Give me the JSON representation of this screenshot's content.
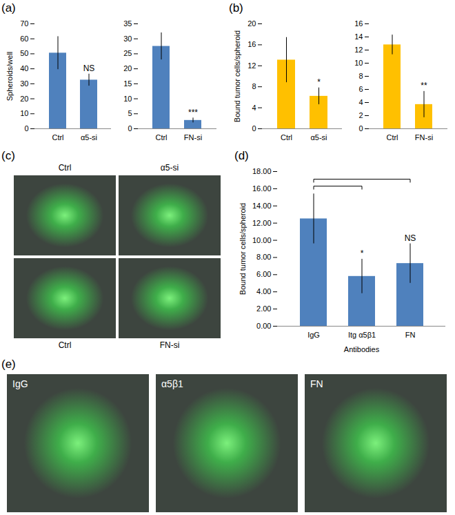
{
  "chart_data": [
    {
      "type": "bar",
      "title": "(a)",
      "ylabel": "Spheroids/well",
      "categories": [
        "Ctrl",
        "α5-si"
      ],
      "values": [
        50.5,
        32.5
      ],
      "errors": [
        11,
        4
      ],
      "annotations": [
        null,
        "NS"
      ],
      "color": "#4f81bd",
      "ylim": [
        0,
        70
      ],
      "yticks": [
        0,
        10,
        20,
        30,
        40,
        50,
        60,
        70
      ]
    },
    {
      "type": "bar",
      "categories": [
        "Ctrl",
        "FN-si"
      ],
      "values": [
        27.5,
        2.8
      ],
      "errors": [
        4.5,
        0.8
      ],
      "annotations": [
        null,
        "***"
      ],
      "color": "#4f81bd",
      "ylim": [
        0,
        35
      ],
      "yticks": [
        0,
        5,
        10,
        15,
        20,
        25,
        30,
        35
      ]
    },
    {
      "type": "bar",
      "title": "(b)",
      "ylabel": "Bound tumor cells/spheroid",
      "categories": [
        "Ctrl",
        "α5-si"
      ],
      "values": [
        13.1,
        6.2
      ],
      "errors": [
        4.3,
        1.6
      ],
      "annotations": [
        null,
        "*"
      ],
      "color": "#ffc000",
      "ylim": [
        0,
        20
      ],
      "yticks": [
        0,
        4,
        8,
        12,
        16,
        20
      ]
    },
    {
      "type": "bar",
      "categories": [
        "Ctrl",
        "FN-si"
      ],
      "values": [
        12.8,
        3.7
      ],
      "errors": [
        1.5,
        2.0
      ],
      "annotations": [
        null,
        "**"
      ],
      "color": "#ffc000",
      "ylim": [
        0,
        16
      ],
      "yticks": [
        0,
        2,
        4,
        6,
        8,
        10,
        12,
        14,
        16
      ]
    },
    {
      "type": "bar",
      "title": "(d)",
      "ylabel": "Bound tumor cells/spheroid",
      "xlabel": "Antibodies",
      "categories": [
        "IgG",
        "Itg α5β1",
        "FN"
      ],
      "values": [
        12.5,
        5.8,
        7.3
      ],
      "errors": [
        2.9,
        2.0,
        2.3
      ],
      "annotations": [
        null,
        "*",
        "NS"
      ],
      "comparisons": [
        [
          "IgG",
          "Itg α5β1"
        ],
        [
          "IgG",
          "FN"
        ]
      ],
      "color": "#4f81bd",
      "ylim": [
        0,
        18
      ],
      "yticks": [
        {
          "value": 0,
          "label": "0.00"
        },
        {
          "value": 2,
          "label": "2.00"
        },
        {
          "value": 4,
          "label": "4.00"
        },
        {
          "value": 6,
          "label": "6.00"
        },
        {
          "value": 8,
          "label": "8.00"
        },
        {
          "value": 10,
          "label": "10.00"
        },
        {
          "value": 12,
          "label": "12.00"
        },
        {
          "value": 14,
          "label": "14.00"
        },
        {
          "value": 16,
          "label": "16.00"
        },
        {
          "value": 18,
          "label": "18.00"
        }
      ]
    }
  ],
  "micrographs": [
    {
      "title": "(c)",
      "labels": [
        "Ctrl",
        "α5-si",
        "Ctrl",
        "FN-si"
      ]
    },
    {
      "title": "(e)",
      "labels": [
        "IgG",
        "α5β1",
        "FN"
      ]
    }
  ]
}
